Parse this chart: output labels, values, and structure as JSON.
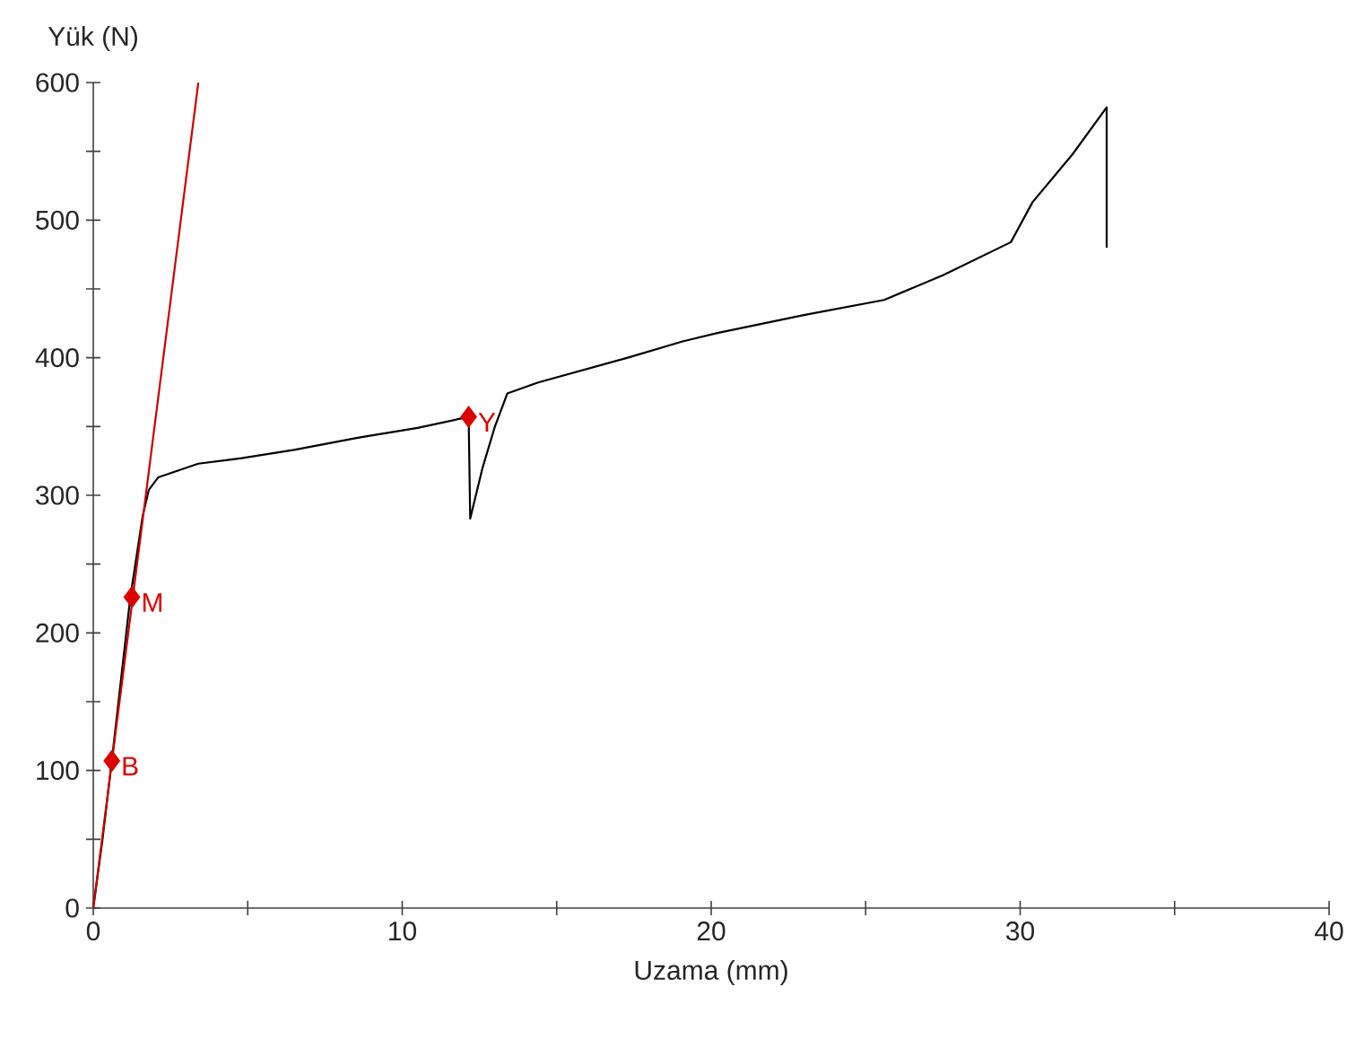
{
  "chart_data": {
    "type": "line",
    "xlabel": "Uzama (mm)",
    "ylabel": "Yük (N)",
    "xlim": [
      0,
      40
    ],
    "ylim": [
      0,
      600
    ],
    "xticks": [
      0,
      {
        "value": 5,
        "label": null
      },
      10,
      {
        "value": 15,
        "label": null
      },
      20,
      {
        "value": 25,
        "label": null
      },
      30,
      {
        "value": 35,
        "label": null
      },
      40
    ],
    "yticks": [
      0,
      {
        "value": 50,
        "label": null
      },
      100,
      {
        "value": 150,
        "label": null
      },
      200,
      {
        "value": 250,
        "label": null
      },
      300,
      {
        "value": 350,
        "label": null
      },
      400,
      {
        "value": 450,
        "label": null
      },
      500,
      {
        "value": 550,
        "label": null
      },
      600
    ],
    "grid": false,
    "marker": "none",
    "line_style": "solid",
    "series": [
      {
        "color": "#000000",
        "x": [
          0,
          0.3,
          0.6,
          1.2,
          1.6,
          1.8,
          2.1,
          3.4,
          4.8,
          6.5,
          8.6,
          10.5,
          12.15,
          12.2,
          12.6,
          13.0,
          13.4,
          14.4,
          17.3,
          19.1,
          20.2,
          23.0,
          25.6,
          27.5,
          29.7,
          30.4,
          31.7,
          32.8,
          32.8
        ],
        "values": [
          0,
          50,
          107,
          226,
          285,
          304,
          313,
          323,
          327,
          333,
          342,
          349,
          357,
          283,
          320,
          350,
          374,
          382,
          400,
          412,
          418,
          431,
          442,
          460,
          484,
          513,
          548,
          582,
          480
        ]
      },
      {
        "color": "#cc0000",
        "x": [
          0,
          3.4
        ],
        "values": [
          0,
          600
        ]
      },
      {
        "type": "scatter",
        "color": "#dd0000",
        "marker": "diamond",
        "x": [
          0.6,
          1.25,
          12.15
        ],
        "values": [
          107,
          226,
          357
        ]
      }
    ],
    "annotations": [
      {
        "text": "B",
        "x": 0.6,
        "y": 107
      },
      {
        "text": "M",
        "x": 1.25,
        "y": 226
      },
      {
        "text": "Y",
        "x": 12.15,
        "y": 357
      }
    ]
  }
}
